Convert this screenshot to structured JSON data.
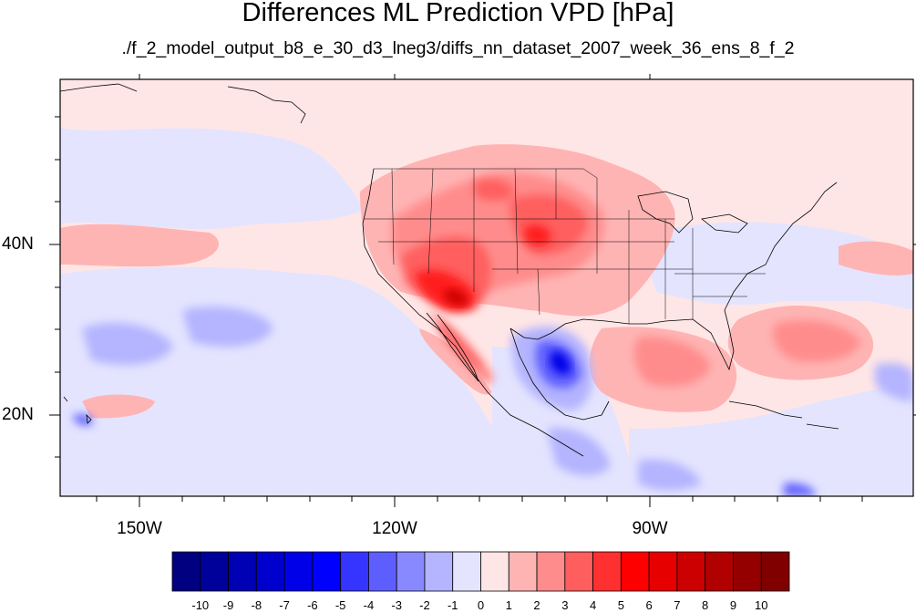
{
  "title": "Differences ML Prediction VPD [hPa]",
  "subtitle": "./f_2_model_output_b8_e_30_d3_lneg3/diffs_nn_dataset_2007_week_36_ens_8_f_2",
  "map": {
    "lon_labels": [
      "150W",
      "120W",
      "90W"
    ],
    "lat_labels": [
      "40N",
      "20N"
    ]
  },
  "colorbar": {
    "labels": [
      "-10",
      "-9",
      "-8",
      "-7",
      "-6",
      "-5",
      "-4",
      "-3",
      "-2",
      "-1",
      "0",
      "1",
      "2",
      "3",
      "4",
      "5",
      "6",
      "7",
      "8",
      "9",
      "10"
    ],
    "colors": [
      "#000080",
      "#00009a",
      "#0000b4",
      "#0000ce",
      "#0000e8",
      "#0000ff",
      "#3535ff",
      "#5e5eff",
      "#8989ff",
      "#b4b4ff",
      "#e4e4ff",
      "#ffe6e6",
      "#ffb4b4",
      "#ff8c8c",
      "#ff5e5e",
      "#ff3030",
      "#ff0000",
      "#e60000",
      "#cc0000",
      "#b00000",
      "#940000",
      "#800000"
    ]
  }
}
